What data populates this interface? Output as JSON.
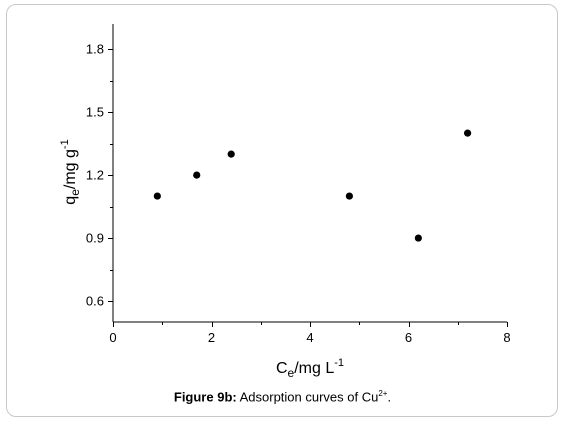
{
  "chart_data": {
    "type": "scatter",
    "x": [
      0.9,
      1.7,
      2.4,
      4.8,
      6.2,
      7.2
    ],
    "y": [
      1.1,
      1.2,
      1.3,
      1.1,
      0.9,
      1.4
    ],
    "xlim": [
      0,
      8
    ],
    "ylim": [
      0.5,
      1.92
    ],
    "x_ticks": [
      0,
      2,
      4,
      6,
      8
    ],
    "y_ticks": [
      0.6,
      0.9,
      1.2,
      1.5,
      1.8
    ],
    "x_tick_labels": [
      "0",
      "2",
      "4",
      "6",
      "8"
    ],
    "y_tick_labels": [
      "0.6",
      "0.9",
      "1.2",
      "1.5",
      "1.8"
    ],
    "xlabel": {
      "main": "C",
      "sub": "e",
      "rest": "/mg L",
      "sup": "-1"
    },
    "ylabel": {
      "main": "q",
      "sub": "e",
      "rest": "/mg g",
      "sup": "-1"
    },
    "grid": false,
    "marker_color": "#000000"
  },
  "caption": {
    "label": "Figure 9b:",
    "text": " Adsorption curves of Cu",
    "sup": "2+",
    "end": "."
  }
}
